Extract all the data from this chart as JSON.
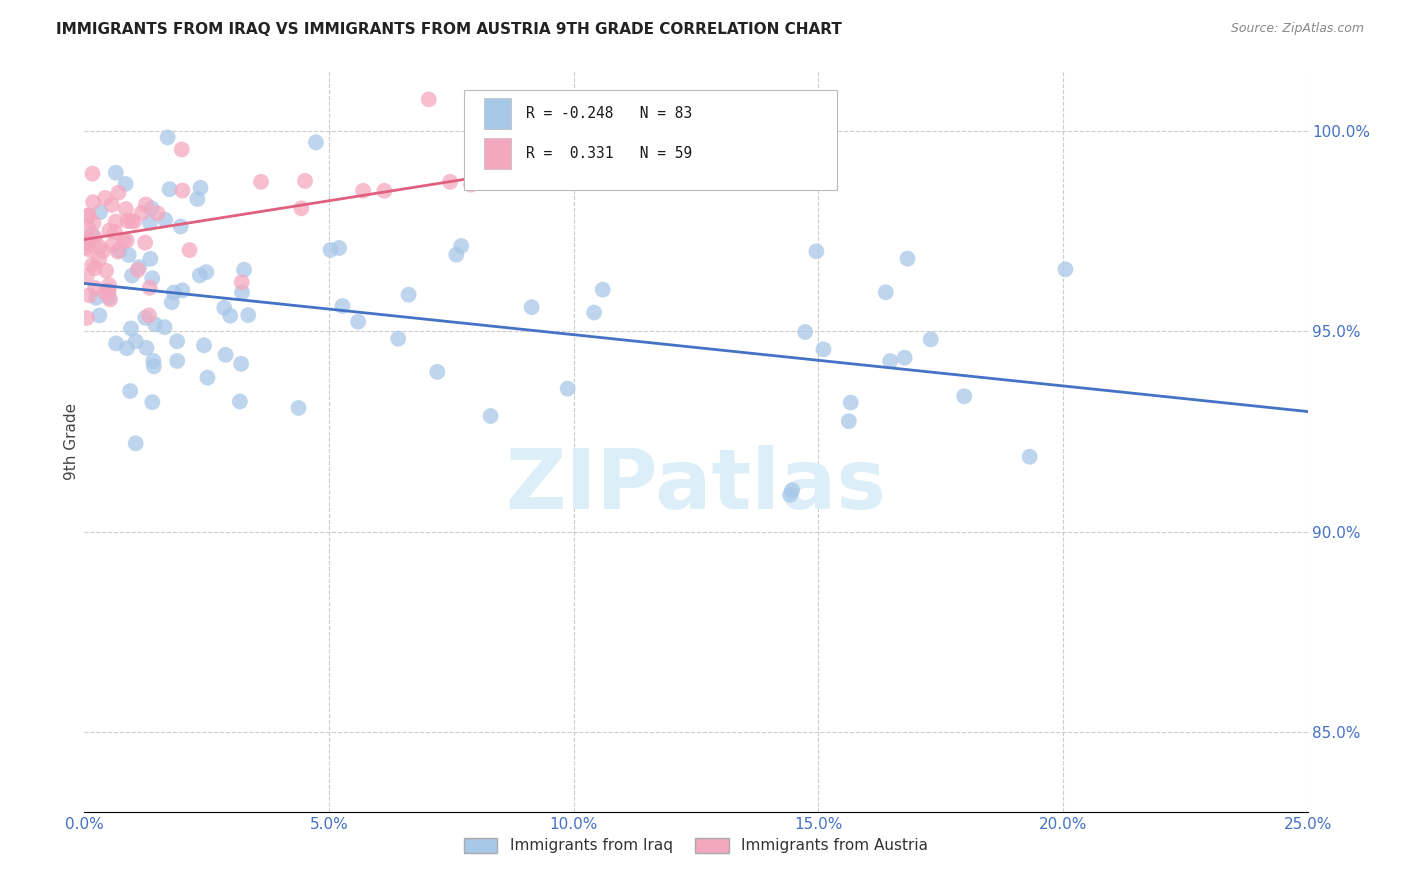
{
  "title": "IMMIGRANTS FROM IRAQ VS IMMIGRANTS FROM AUSTRIA 9TH GRADE CORRELATION CHART",
  "source": "Source: ZipAtlas.com",
  "ylabel": "9th Grade",
  "right_yticks": [
    100.0,
    95.0,
    90.0,
    85.0
  ],
  "right_ytick_labels": [
    "100.0%",
    "95.0%",
    "90.0%",
    "85.0%"
  ],
  "xmin": 0.0,
  "xmax": 25.0,
  "ymin": 83.0,
  "ymax": 101.5,
  "iraq_R": -0.248,
  "iraq_N": 83,
  "austria_R": 0.331,
  "austria_N": 59,
  "iraq_color": "#a8c8e8",
  "austria_color": "#f4a8c0",
  "trendline_iraq_color": "#4472c4",
  "trendline_austria_color": "#e06080",
  "watermark_text": "ZIPatlas",
  "watermark_color": "#dceef8",
  "background_color": "#ffffff",
  "grid_color": "#cccccc",
  "trendline_iraq_x0": 0.0,
  "trendline_iraq_y0": 96.2,
  "trendline_iraq_x1": 25.0,
  "trendline_iraq_y1": 93.0,
  "trendline_aus_x0": 0.0,
  "trendline_aus_y0": 97.3,
  "trendline_aus_x1": 15.0,
  "trendline_aus_y1": 100.2
}
